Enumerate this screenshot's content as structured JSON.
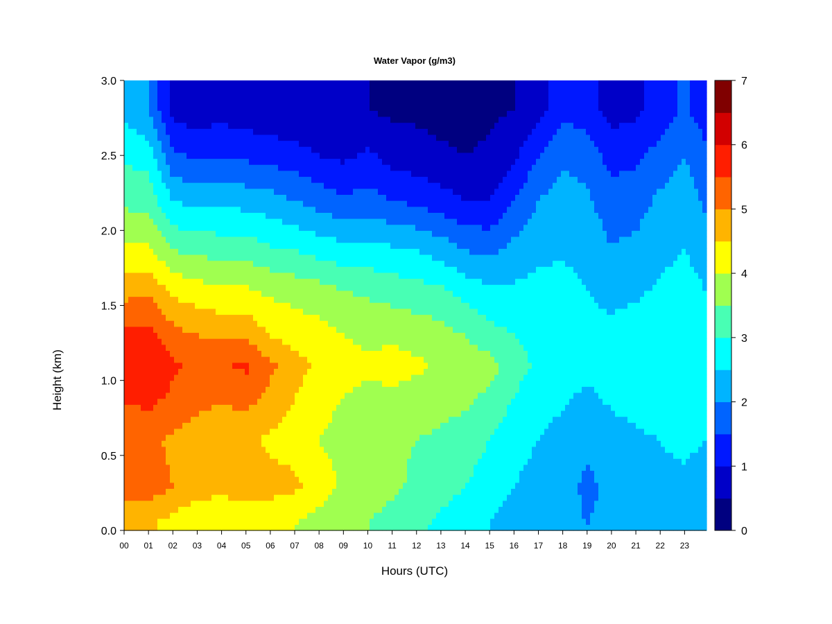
{
  "chart_data": {
    "type": "heatmap",
    "title": "Water Vapor (g/m3)",
    "xlabel": "Hours (UTC)",
    "ylabel": "Height (km)",
    "xlim": [
      0,
      23.9
    ],
    "ylim": [
      0.0,
      3.0
    ],
    "x_ticks": [
      "00",
      "01",
      "02",
      "03",
      "04",
      "05",
      "06",
      "07",
      "08",
      "09",
      "10",
      "11",
      "12",
      "13",
      "14",
      "15",
      "16",
      "17",
      "18",
      "19",
      "20",
      "21",
      "22",
      "23"
    ],
    "y_ticks": [
      "0.0",
      "0.5",
      "1.0",
      "1.5",
      "2.0",
      "2.5",
      "3.0"
    ],
    "colorbar": {
      "ticks": [
        "0",
        "1",
        "2",
        "3",
        "4",
        "5",
        "6",
        "7"
      ],
      "min": 0,
      "max": 7,
      "levels": [
        0,
        0.5,
        1,
        1.5,
        2,
        2.5,
        3,
        3.5,
        4,
        4.5,
        5,
        5.5,
        6,
        6.5,
        7
      ],
      "colors": [
        "#000080",
        "#0000c8",
        "#0018ff",
        "#0064ff",
        "#00b4ff",
        "#00ffff",
        "#48ffb4",
        "#a0ff50",
        "#ffff00",
        "#ffb400",
        "#ff6400",
        "#ff1e00",
        "#d20000",
        "#800000"
      ]
    },
    "grid": false,
    "legend": "right colorbar",
    "heights": [
      0.05,
      0.3,
      0.6,
      0.9,
      1.1,
      1.3,
      1.6,
      1.9,
      2.2,
      2.5,
      2.8
    ],
    "series": [
      {
        "x": 0,
        "values": [
          4.6,
          5.3,
          5.0,
          5.6,
          5.9,
          5.7,
          4.8,
          4.0,
          3.4,
          2.9,
          2.4
        ]
      },
      {
        "x": 1,
        "values": [
          4.6,
          5.3,
          5.1,
          5.7,
          6.0,
          5.7,
          4.9,
          4.0,
          3.3,
          2.8,
          2.0
        ]
      },
      {
        "x": 2,
        "values": [
          4.3,
          5.0,
          4.9,
          5.4,
          5.6,
          5.2,
          4.4,
          3.4,
          2.5,
          1.6,
          0.8
        ]
      },
      {
        "x": 3,
        "values": [
          4.0,
          4.8,
          4.7,
          5.2,
          5.3,
          5.0,
          4.2,
          3.3,
          2.3,
          1.4,
          0.7
        ]
      },
      {
        "x": 4,
        "values": [
          4.0,
          4.7,
          4.6,
          5.1,
          5.4,
          4.9,
          4.1,
          3.2,
          2.4,
          1.5,
          0.8
        ]
      },
      {
        "x": 5,
        "values": [
          4.1,
          4.8,
          4.6,
          5.2,
          5.6,
          4.9,
          4.1,
          3.2,
          2.3,
          1.4,
          0.7
        ]
      },
      {
        "x": 6,
        "values": [
          4.1,
          4.7,
          4.4,
          4.9,
          5.1,
          4.5,
          3.9,
          3.0,
          2.2,
          1.3,
          0.6
        ]
      },
      {
        "x": 7,
        "values": [
          4.0,
          4.6,
          4.3,
          4.5,
          4.7,
          4.3,
          3.8,
          2.9,
          2.0,
          1.2,
          0.6
        ]
      },
      {
        "x": 8,
        "values": [
          3.8,
          4.3,
          4.0,
          4.2,
          4.4,
          4.2,
          3.7,
          2.7,
          1.8,
          1.0,
          0.5
        ]
      },
      {
        "x": 9,
        "values": [
          3.5,
          3.9,
          3.8,
          4.0,
          4.2,
          4.0,
          3.5,
          2.6,
          1.6,
          0.9,
          0.5
        ]
      },
      {
        "x": 10,
        "values": [
          3.5,
          3.8,
          3.7,
          3.9,
          4.1,
          3.9,
          3.4,
          2.6,
          1.7,
          1.1,
          0.5
        ]
      },
      {
        "x": 11,
        "values": [
          3.3,
          3.6,
          3.6,
          3.9,
          4.2,
          3.9,
          3.3,
          2.5,
          1.5,
          0.8,
          0.4
        ]
      },
      {
        "x": 12,
        "values": [
          3.1,
          3.4,
          3.5,
          3.8,
          4.1,
          3.8,
          3.2,
          2.4,
          1.4,
          0.7,
          0.4
        ]
      },
      {
        "x": 13,
        "values": [
          2.9,
          3.2,
          3.4,
          3.7,
          3.9,
          3.7,
          3.1,
          2.2,
          1.2,
          0.6,
          0.3
        ]
      },
      {
        "x": 14,
        "values": [
          2.7,
          3.0,
          3.3,
          3.6,
          3.8,
          3.5,
          2.8,
          1.9,
          1.0,
          0.5,
          0.3
        ]
      },
      {
        "x": 15,
        "values": [
          2.5,
          2.7,
          3.0,
          3.4,
          3.7,
          3.2,
          2.6,
          1.8,
          1.0,
          0.6,
          0.4
        ]
      },
      {
        "x": 16,
        "values": [
          2.3,
          2.5,
          2.7,
          3.0,
          3.2,
          3.0,
          2.6,
          2.1,
          1.5,
          0.9,
          0.5
        ]
      },
      {
        "x": 17,
        "values": [
          2.2,
          2.3,
          2.5,
          2.7,
          2.9,
          2.9,
          2.7,
          2.3,
          2.0,
          1.5,
          0.8
        ]
      },
      {
        "x": 18,
        "values": [
          2.1,
          2.2,
          2.3,
          2.6,
          2.8,
          2.8,
          2.7,
          2.4,
          2.2,
          1.9,
          1.4
        ]
      },
      {
        "x": 19,
        "values": [
          2.0,
          1.9,
          2.1,
          2.4,
          2.7,
          2.7,
          2.5,
          2.3,
          2.1,
          1.8,
          1.2
        ]
      },
      {
        "x": 20,
        "values": [
          2.1,
          2.1,
          2.3,
          2.6,
          2.8,
          2.7,
          2.3,
          2.0,
          1.7,
          1.3,
          0.8
        ]
      },
      {
        "x": 21,
        "values": [
          2.2,
          2.3,
          2.4,
          2.7,
          2.9,
          2.8,
          2.4,
          2.1,
          1.8,
          1.4,
          0.9
        ]
      },
      {
        "x": 22,
        "values": [
          2.3,
          2.4,
          2.5,
          2.8,
          2.9,
          2.8,
          2.6,
          2.3,
          2.1,
          1.7,
          1.2
        ]
      },
      {
        "x": 23,
        "values": [
          2.3,
          2.4,
          2.6,
          2.8,
          3.0,
          2.9,
          2.7,
          2.5,
          2.3,
          2.0,
          1.6
        ]
      },
      {
        "x": 23.9,
        "values": [
          2.2,
          2.3,
          2.5,
          2.7,
          2.8,
          2.7,
          2.5,
          2.2,
          1.9,
          1.6,
          1.2
        ]
      }
    ]
  }
}
